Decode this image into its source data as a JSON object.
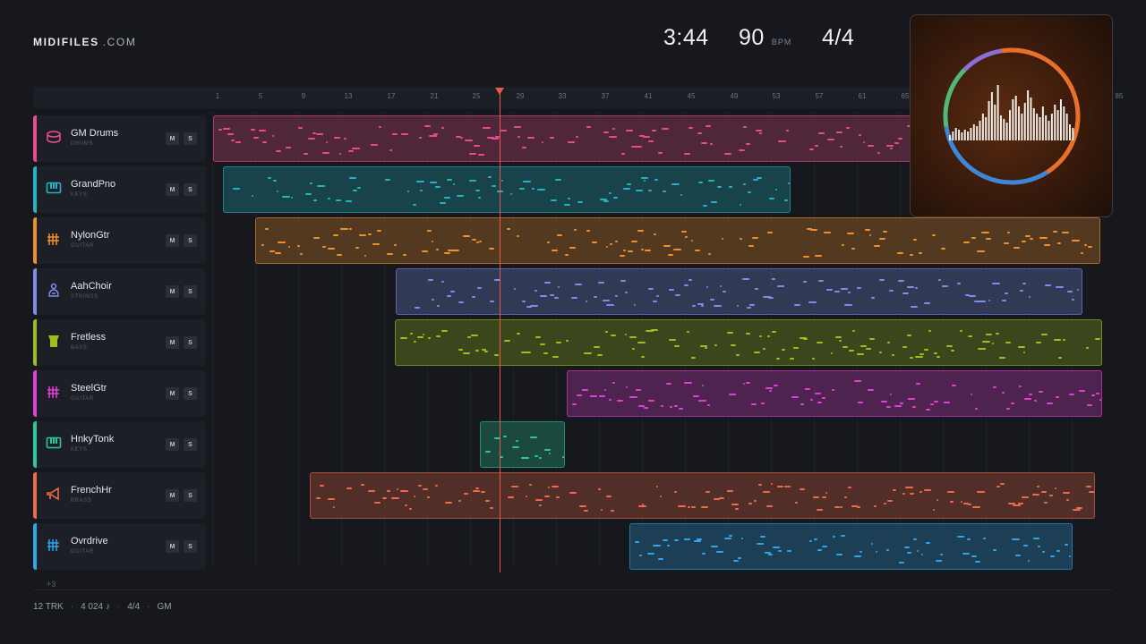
{
  "brand": {
    "name": "MIDIFILES",
    "suffix": ".COM"
  },
  "transport": {
    "time": "3:44",
    "tempo": "90",
    "tempo_unit": "BPM",
    "signature": "4/4"
  },
  "ruler": {
    "ticks": [
      "1",
      "5",
      "9",
      "13",
      "17",
      "21",
      "25",
      "29",
      "33",
      "37",
      "41",
      "45",
      "49",
      "53",
      "57",
      "61",
      "65",
      "85"
    ]
  },
  "tracks": [
    {
      "name": "GM Drums",
      "category": "DRUMS",
      "color": "#e84d8a",
      "icon": "drum-icon",
      "mute": "M",
      "solo": "S"
    },
    {
      "name": "GrandPno",
      "category": "KEYS",
      "color": "#22b3c6",
      "icon": "piano-icon",
      "mute": "M",
      "solo": "S"
    },
    {
      "name": "NylonGtr",
      "category": "GUITAR",
      "color": "#f0902a",
      "icon": "guitar-icon",
      "mute": "M",
      "solo": "S"
    },
    {
      "name": "AahChoir",
      "category": "STRINGS",
      "color": "#7e8ee8",
      "icon": "choir-icon",
      "mute": "M",
      "solo": "S"
    },
    {
      "name": "Fretless",
      "category": "BASS",
      "color": "#9cbf1e",
      "icon": "bass-icon",
      "mute": "M",
      "solo": "S"
    },
    {
      "name": "SteelGtr",
      "category": "GUITAR",
      "color": "#e33fd6",
      "icon": "guitar-icon",
      "mute": "M",
      "solo": "S"
    },
    {
      "name": "HnkyTonk",
      "category": "KEYS",
      "color": "#2cc79a",
      "icon": "piano-icon",
      "mute": "M",
      "solo": "S"
    },
    {
      "name": "FrenchHr",
      "category": "BRASS",
      "color": "#f0694a",
      "icon": "horn-icon",
      "mute": "M",
      "solo": "S"
    },
    {
      "name": "Ovrdrive",
      "category": "GUITAR",
      "color": "#2ea6e8",
      "icon": "guitar-icon",
      "mute": "M",
      "solo": "S"
    }
  ],
  "more_tracks": "+3",
  "footer": {
    "tracks": "12 TRK",
    "notes": "4 024 ♪",
    "signature": "4/4",
    "standard": "GM"
  },
  "cover": {
    "ring_colors": [
      "#e8702a",
      "#3f86d9",
      "#8b6fd4",
      "#4fb87a"
    ],
    "icon": "audio-visualizer-icon"
  }
}
